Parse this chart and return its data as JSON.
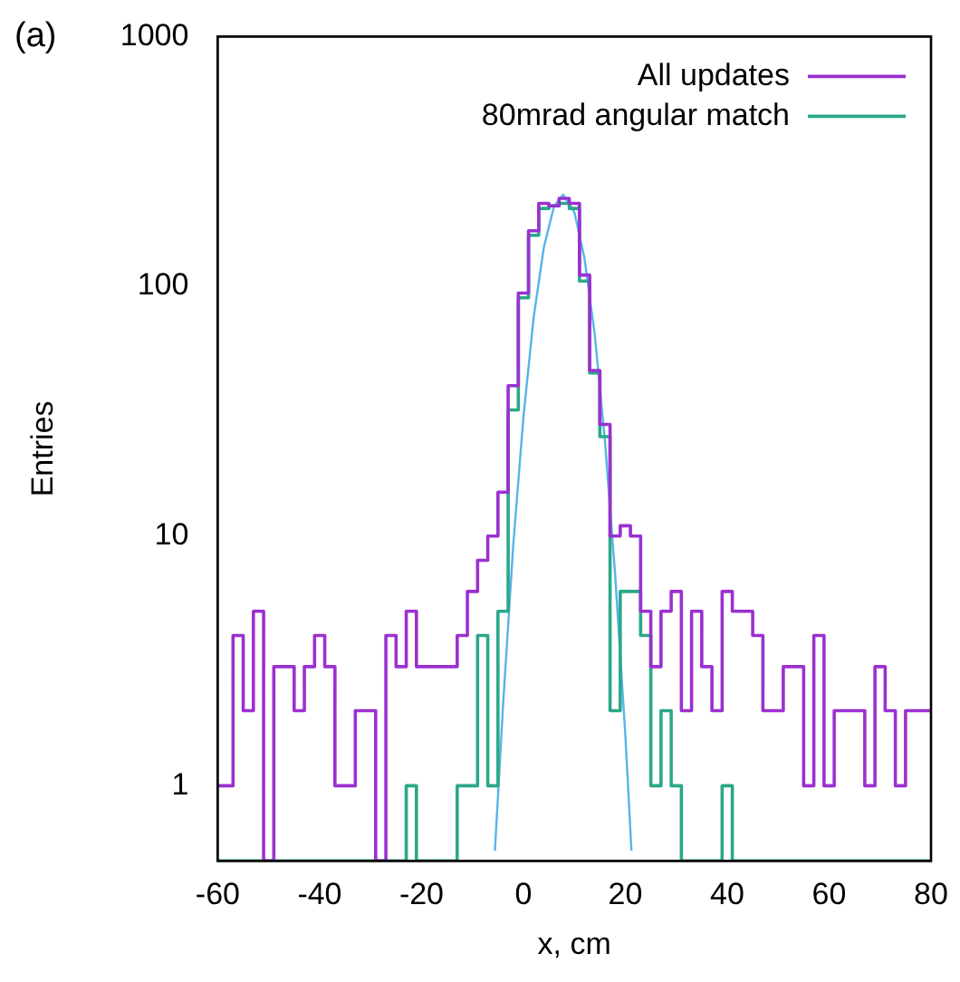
{
  "chart_data": {
    "type": "histogram",
    "annotations": [
      "(a)"
    ],
    "xlabel": "x, cm",
    "ylabel": "Entries",
    "bins": [
      -60,
      -59,
      -57,
      -55,
      -53,
      -51,
      -49,
      -47,
      -45,
      -43,
      -41,
      -39,
      -37,
      -35,
      -33,
      -31,
      -29,
      -27,
      -25,
      -23,
      -21,
      -19,
      -17,
      -15,
      -13,
      -11,
      -9,
      -7,
      -5,
      -3,
      -1,
      1,
      3,
      5,
      7,
      9,
      11,
      13,
      15,
      17,
      19,
      21,
      23,
      25,
      27,
      29,
      31,
      33,
      35,
      37,
      39,
      41,
      43,
      45,
      47,
      49,
      51,
      53,
      55,
      57,
      59,
      61,
      63,
      65,
      67,
      69,
      71,
      73,
      75,
      77,
      79,
      80
    ],
    "series": [
      {
        "name": "All updates",
        "color": "#9b30d0",
        "values": [
          1,
          1,
          4,
          2,
          5,
          null,
          3,
          3,
          2,
          3,
          4,
          3,
          1,
          1,
          2,
          2,
          null,
          4,
          3,
          5,
          3,
          3,
          3,
          3,
          4,
          6,
          8,
          10,
          15,
          40,
          94,
          167,
          215,
          210,
          225,
          215,
          111,
          46,
          28,
          10,
          11,
          10,
          5,
          3,
          5,
          6,
          2,
          5,
          3,
          2,
          6,
          5,
          5,
          4,
          2,
          2,
          3,
          3,
          1,
          4,
          1,
          2,
          2,
          2,
          1,
          3,
          2,
          1,
          2,
          2,
          2
        ]
      },
      {
        "name": "80mrad angular match",
        "color": "#2aa88a",
        "values": [
          null,
          null,
          null,
          null,
          null,
          null,
          null,
          null,
          null,
          null,
          null,
          null,
          null,
          null,
          null,
          null,
          null,
          null,
          null,
          1,
          null,
          null,
          null,
          null,
          1,
          1,
          4,
          1,
          5,
          32,
          90,
          160,
          205,
          210,
          215,
          205,
          105,
          45,
          25,
          2,
          6,
          6,
          4,
          1,
          2,
          1,
          null,
          null,
          null,
          null,
          1,
          null,
          null,
          null,
          null,
          null,
          null,
          null,
          null,
          null,
          null,
          null,
          null,
          null,
          null,
          null,
          null,
          null,
          null,
          null,
          null
        ]
      },
      {
        "type": "line",
        "color": "#56b4e9",
        "x": [
          -5.6,
          -4,
          -2,
          0,
          2,
          4,
          6,
          7.8,
          10,
          12,
          14,
          16,
          18,
          20,
          21.2
        ],
        "values": [
          0.55,
          2.1,
          9.2,
          30,
          75,
          143,
          209,
          233,
          198,
          129,
          64,
          24,
          7,
          1.6,
          0.55
        ]
      }
    ],
    "xlim": [
      -60,
      80
    ],
    "xticks": [
      -60,
      -40,
      -20,
      0,
      20,
      40,
      60,
      80
    ],
    "ylim": [
      0.5,
      1000
    ],
    "yticks": [
      1,
      10,
      100,
      1000
    ],
    "log": true,
    "grid": false,
    "legend": "top right"
  }
}
